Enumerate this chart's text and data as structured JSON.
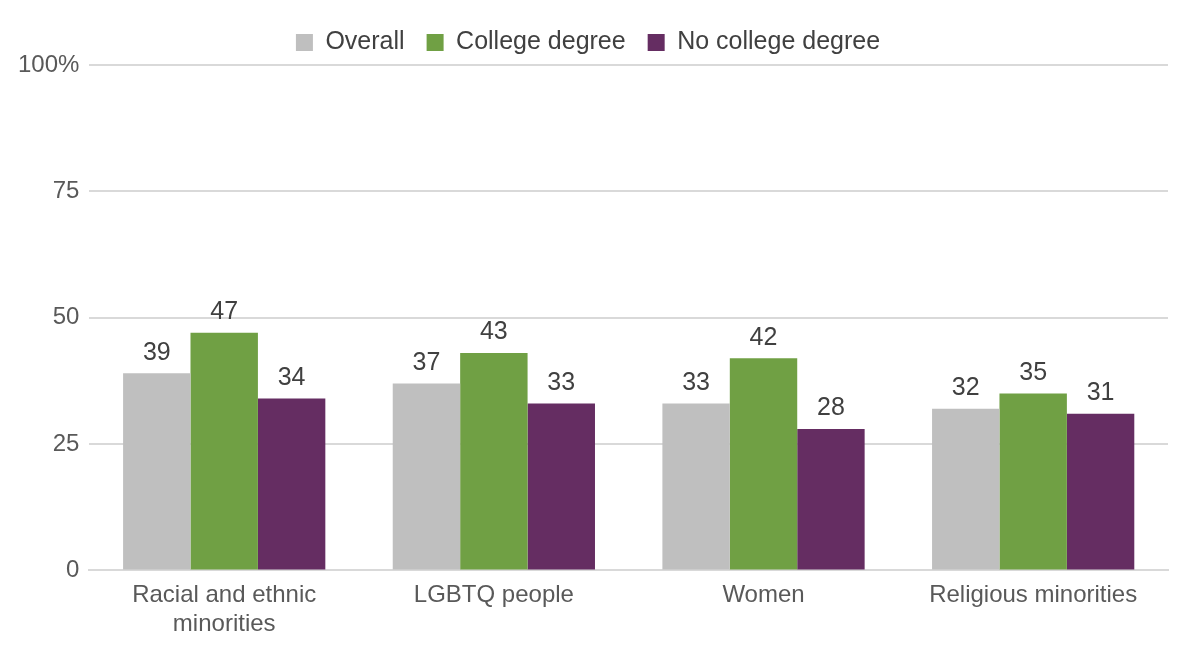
{
  "chart_data": {
    "type": "bar",
    "categories": [
      "Racial and ethnic minorities",
      "LGBTQ people",
      "Women",
      "Religious minorities"
    ],
    "series": [
      {
        "name": "Overall",
        "color": "#bfbfbf",
        "values": [
          39,
          37,
          33,
          32
        ]
      },
      {
        "name": "College degree",
        "color": "#70a044",
        "values": [
          47,
          43,
          42,
          35
        ]
      },
      {
        "name": "No college degree",
        "color": "#652d62",
        "values": [
          34,
          33,
          28,
          31
        ]
      }
    ],
    "ylim": [
      0,
      100
    ],
    "yticks": [
      0,
      25,
      50,
      75,
      {
        "value": 100,
        "label": "100%"
      }
    ],
    "grid": "y",
    "legend": "top",
    "data_labels": true
  }
}
